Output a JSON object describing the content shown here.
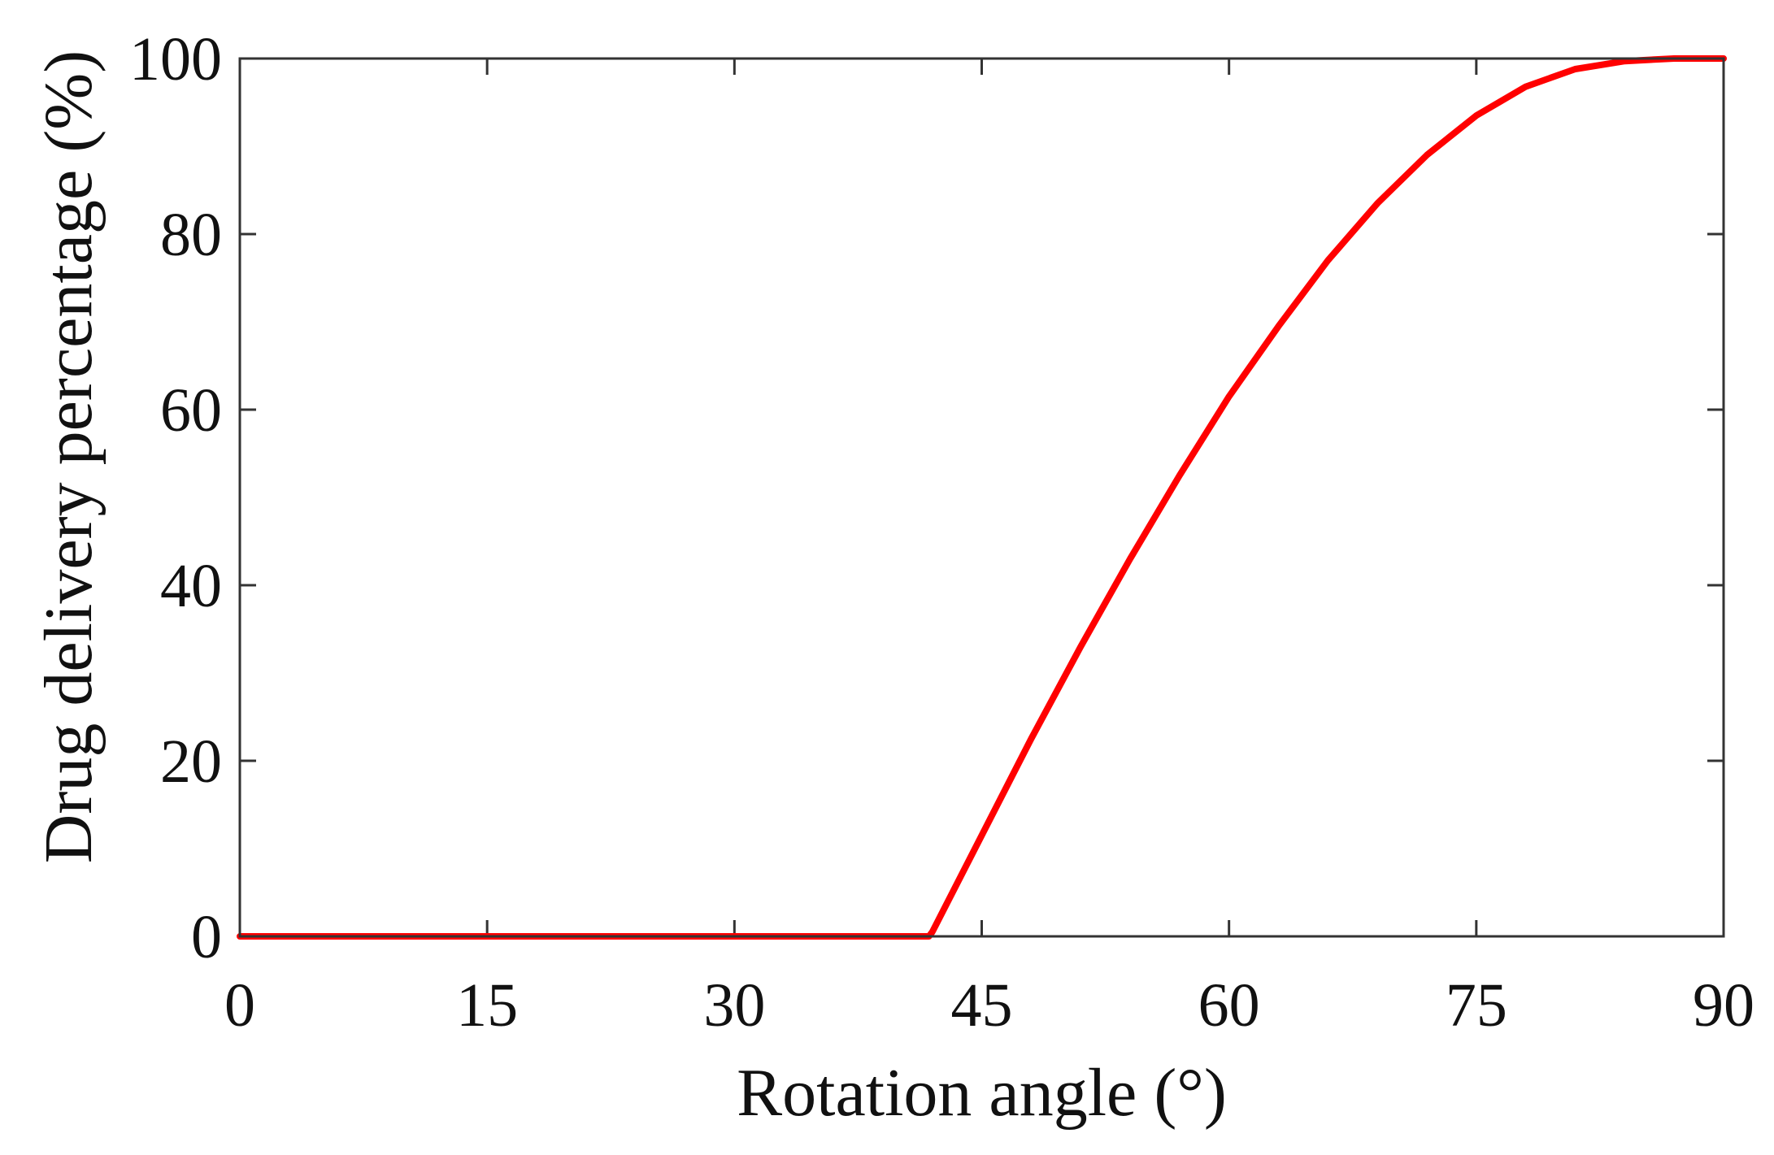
{
  "chart_data": {
    "type": "line",
    "title": "",
    "xlabel": "Rotation angle (°)",
    "ylabel": "Drug delivery percentage (%)",
    "xlim": [
      0,
      90
    ],
    "ylim": [
      0,
      100
    ],
    "x_ticks": [
      0,
      15,
      30,
      45,
      60,
      75,
      90
    ],
    "y_ticks": [
      0,
      20,
      40,
      60,
      80,
      100
    ],
    "x_tick_labels": [
      "0",
      "15",
      "30",
      "45",
      "60",
      "75",
      "90"
    ],
    "y_tick_labels": [
      "0",
      "20",
      "40",
      "60",
      "80",
      "100"
    ],
    "grid": false,
    "legend": "none",
    "series": [
      {
        "color": "#ff0000",
        "x": [
          0,
          15,
          30,
          41.8,
          42,
          45,
          48,
          51,
          54,
          57,
          60,
          63,
          66,
          69,
          72,
          75,
          78,
          81,
          84,
          87,
          90
        ],
        "y": [
          0,
          0,
          0,
          0,
          0.5,
          11.5,
          22.5,
          33,
          43,
          52.5,
          61.5,
          69.5,
          77,
          83.5,
          89,
          93.5,
          96.8,
          98.8,
          99.7,
          100,
          100
        ]
      }
    ]
  }
}
